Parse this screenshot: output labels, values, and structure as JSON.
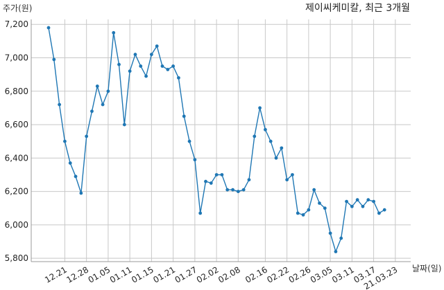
{
  "chart_data": {
    "type": "line",
    "title": "제이씨케미칼, 최근 3개월",
    "ylabel": "주가(원)",
    "xlabel": "날짜(일)",
    "ylim": [
      5780,
      7230
    ],
    "yticks": [
      5800,
      6000,
      6200,
      6400,
      6600,
      6800,
      7000,
      7200
    ],
    "ytick_labels": [
      "5,800",
      "6,000",
      "6,200",
      "6,400",
      "6,600",
      "6,800",
      "7,000",
      "7,200"
    ],
    "xtick_labels": [
      "12.21",
      "12.28",
      "01.05",
      "01.11",
      "01.15",
      "01.21",
      "01.27",
      "02.02",
      "02.08",
      "02.16",
      "02.22",
      "02.26",
      "03.05",
      "03.11",
      "03.17",
      "21.03.23"
    ],
    "xtick_index": [
      3,
      7,
      11,
      15,
      19,
      23,
      27,
      31,
      35,
      40,
      44,
      48,
      52,
      56,
      60,
      64
    ],
    "grid": true,
    "series": [
      {
        "color": "#1f77b4",
        "values": [
          7180,
          6990,
          6720,
          6500,
          6370,
          6290,
          6190,
          6530,
          6680,
          6830,
          6720,
          6800,
          7150,
          6960,
          6600,
          6920,
          7020,
          6950,
          6890,
          7020,
          7070,
          6950,
          6930,
          6950,
          6880,
          6650,
          6500,
          6390,
          6070,
          6260,
          6250,
          6300,
          6300,
          6210,
          6210,
          6200,
          6210,
          6270,
          6530,
          6700,
          6570,
          6500,
          6400,
          6460,
          6270,
          6300,
          6070,
          6060,
          6090,
          6210,
          6130,
          6100,
          5950,
          5840,
          5920,
          6140,
          6110,
          6150,
          6110,
          6150,
          6140,
          6070,
          6090
        ]
      }
    ]
  }
}
